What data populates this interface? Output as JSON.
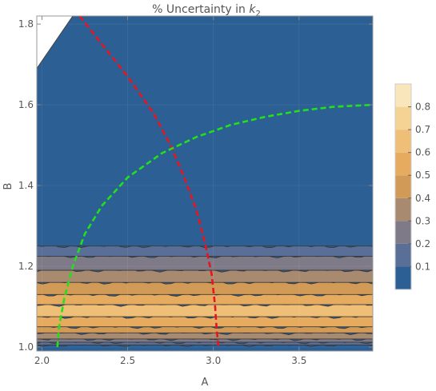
{
  "chart_data": {
    "type": "heatmap",
    "title": "% Uncertainty in ",
    "title_symbol": "k",
    "title_subscript": "2",
    "xlabel": "A",
    "ylabel": "B",
    "xlim": [
      1.97,
      3.93
    ],
    "ylim": [
      0.99,
      1.82
    ],
    "x_ticks": [
      2.0,
      2.5,
      3.0,
      3.5
    ],
    "x_tick_labels": [
      "2.0",
      "2.5",
      "3.0",
      "3.5"
    ],
    "y_ticks": [
      1.0,
      1.2,
      1.4,
      1.6,
      1.8
    ],
    "y_tick_labels": [
      "1.0",
      "1.2",
      "1.4",
      "1.6",
      "1.8"
    ],
    "colorbar": {
      "range": [
        0.0,
        0.9
      ],
      "ticks": [
        0.1,
        0.2,
        0.3,
        0.4,
        0.5,
        0.6,
        0.7,
        0.8
      ],
      "tick_labels": [
        "0.1",
        "0.2",
        "0.3",
        "0.4",
        "0.5",
        "0.6",
        "0.7",
        "0.8"
      ],
      "colors": [
        "#2c5f94",
        "#5a6f98",
        "#7f7a88",
        "#a88a70",
        "#d19a56",
        "#e6ab5f",
        "#efbf77",
        "#f4d395",
        "#f9e7bb"
      ]
    },
    "bands": [
      {
        "ymin": 0.99,
        "ymax": 1.005,
        "level": 0
      },
      {
        "ymin": 1.005,
        "ymax": 1.012,
        "level": 1
      },
      {
        "ymin": 1.012,
        "ymax": 1.02,
        "level": 2
      },
      {
        "ymin": 1.02,
        "ymax": 1.035,
        "level": 3
      },
      {
        "ymin": 1.035,
        "ymax": 1.05,
        "level": 4
      },
      {
        "ymin": 1.05,
        "ymax": 1.075,
        "level": 5
      },
      {
        "ymin": 1.075,
        "ymax": 1.105,
        "level": 6
      },
      {
        "ymin": 1.105,
        "ymax": 1.13,
        "level": 5
      },
      {
        "ymin": 1.13,
        "ymax": 1.16,
        "level": 4
      },
      {
        "ymin": 1.16,
        "ymax": 1.19,
        "level": 3
      },
      {
        "ymin": 1.19,
        "ymax": 1.225,
        "level": 2
      },
      {
        "ymin": 1.225,
        "ymax": 1.25,
        "level": 1
      },
      {
        "ymin": 1.25,
        "ymax": 1.82,
        "level": 0
      }
    ],
    "blank_region": [
      [
        1.97,
        1.69
      ],
      [
        2.18,
        1.82
      ],
      [
        1.97,
        1.82
      ]
    ],
    "series": [
      {
        "color": "#e8141e",
        "x": [
          2.22,
          2.35,
          2.5,
          2.65,
          2.75,
          2.83,
          2.9,
          2.95,
          2.99,
          3.01,
          3.02,
          3.03
        ],
        "y": [
          1.82,
          1.75,
          1.67,
          1.58,
          1.5,
          1.42,
          1.34,
          1.26,
          1.18,
          1.1,
          1.04,
          1.0
        ]
      },
      {
        "color": "#22e11a",
        "x": [
          2.09,
          2.1,
          2.13,
          2.18,
          2.25,
          2.35,
          2.5,
          2.7,
          2.9,
          3.1,
          3.3,
          3.5,
          3.7,
          3.93
        ],
        "y": [
          1.0,
          1.05,
          1.12,
          1.2,
          1.28,
          1.35,
          1.42,
          1.48,
          1.52,
          1.55,
          1.57,
          1.585,
          1.595,
          1.6
        ]
      }
    ]
  }
}
